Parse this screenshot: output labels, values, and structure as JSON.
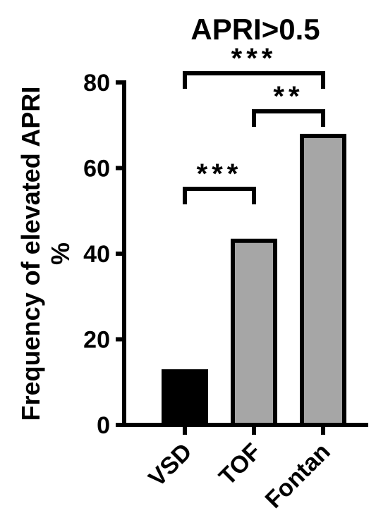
{
  "chart_data": {
    "type": "bar",
    "title": "APRI>0.5",
    "ylabel_lines": [
      "Frequency of elevated APRI",
      "%"
    ],
    "xlabel": "",
    "categories": [
      "VSD",
      "TOF",
      "Fontan"
    ],
    "values": [
      12.5,
      43,
      67.5
    ],
    "bar_colors": [
      "#000000",
      "#a6a6a6",
      "#a6a6a6"
    ],
    "ylim": [
      0,
      80
    ],
    "yticks": [
      "0",
      "20",
      "40",
      "60",
      "80"
    ],
    "grid": false,
    "legend": "none",
    "significance": [
      {
        "from": 1,
        "to": 2,
        "label": "***"
      },
      {
        "from": 2,
        "to": 3,
        "label": "**"
      },
      {
        "from": 1,
        "to": 3,
        "label": "***"
      }
    ]
  }
}
